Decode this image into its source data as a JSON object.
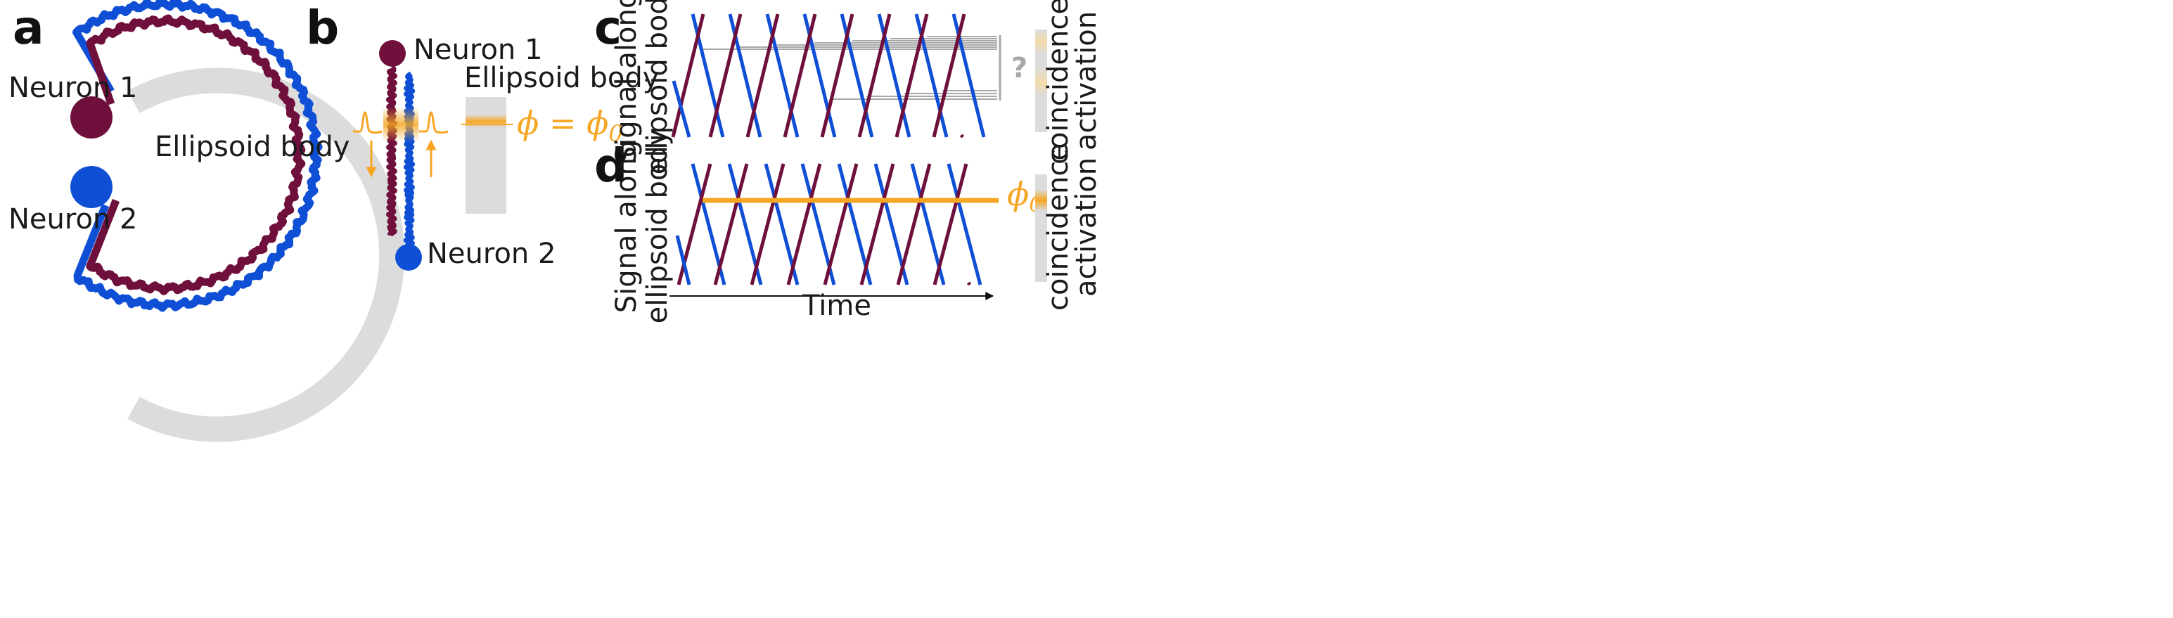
{
  "panels": {
    "a": {
      "label": "a",
      "neuron1": "Neuron 1",
      "neuron2": "Neuron 2",
      "ellipsoid": "Ellipsoid body"
    },
    "b": {
      "label": "b",
      "neuron1": "Neuron 1",
      "neuron2": "Neuron 2",
      "ellipsoid": "Ellipsoid body",
      "phi_lhs": "ϕ = ϕ",
      "phi_sub": "0"
    },
    "c": {
      "label": "c",
      "ylabel_line1": "Signal along",
      "ylabel_line2": "ellipsoid body",
      "question": "?",
      "bar_line1": "coincidence",
      "bar_line2": "activation"
    },
    "d": {
      "label": "d",
      "ylabel_line1": "Signal along",
      "ylabel_line2": "ellipsoid body",
      "xlabel": "Time",
      "phi": "ϕ",
      "phi_sub": "0",
      "bar_line1": "coincidence",
      "bar_line2": "activation"
    }
  },
  "colors": {
    "neuron1": "#6e0f3c",
    "neuron2": "#0f4fd6",
    "highlight": "#f5a623",
    "ellipsoid": "#dcdcdc",
    "coincidence_lines": "#a8a8a8"
  }
}
